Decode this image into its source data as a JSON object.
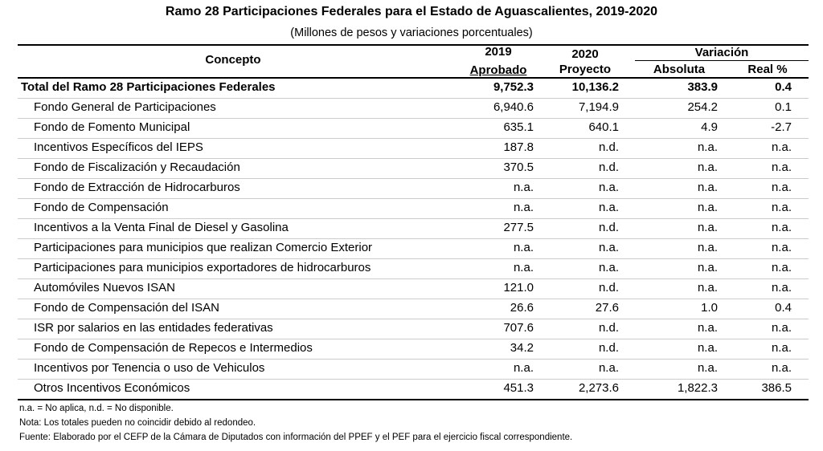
{
  "title": "Ramo 28 Participaciones Federales para el Estado de Aguascalientes, 2019-2020",
  "subtitle": "(Millones de pesos y variaciones porcentuales)",
  "headers": {
    "concepto": "Concepto",
    "y2019": "2019",
    "aprobado": "Aprobado",
    "y2020": "2020",
    "proyecto": "Proyecto",
    "variacion": "Variación",
    "absoluta": "Absoluta",
    "real": "Real %"
  },
  "rows": [
    {
      "concepto": "Total del Ramo 28 Participaciones Federales",
      "aprobado": "9,752.3",
      "proyecto": "10,136.2",
      "absoluta": "383.9",
      "real": "0.4"
    },
    {
      "concepto": "Fondo General de Participaciones",
      "aprobado": "6,940.6",
      "proyecto": "7,194.9",
      "absoluta": "254.2",
      "real": "0.1"
    },
    {
      "concepto": "Fondo de Fomento Municipal",
      "aprobado": "635.1",
      "proyecto": "640.1",
      "absoluta": "4.9",
      "real": "-2.7"
    },
    {
      "concepto": "Incentivos Específicos del IEPS",
      "aprobado": "187.8",
      "proyecto": "n.d.",
      "absoluta": "n.a.",
      "real": "n.a."
    },
    {
      "concepto": "Fondo de Fiscalización y Recaudación",
      "aprobado": "370.5",
      "proyecto": "n.d.",
      "absoluta": "n.a.",
      "real": "n.a."
    },
    {
      "concepto": "Fondo de Extracción de Hidrocarburos",
      "aprobado": "n.a.",
      "proyecto": "n.a.",
      "absoluta": "n.a.",
      "real": "n.a."
    },
    {
      "concepto": "Fondo de Compensación",
      "aprobado": "n.a.",
      "proyecto": "n.a.",
      "absoluta": "n.a.",
      "real": "n.a."
    },
    {
      "concepto": "Incentivos a la Venta Final de Diesel y Gasolina",
      "aprobado": "277.5",
      "proyecto": "n.d.",
      "absoluta": "n.a.",
      "real": "n.a."
    },
    {
      "concepto": "Participaciones para municipios que realizan Comercio Exterior",
      "aprobado": "n.a.",
      "proyecto": "n.a.",
      "absoluta": "n.a.",
      "real": "n.a."
    },
    {
      "concepto": "Participaciones para municipios exportadores de hidrocarburos",
      "aprobado": "n.a.",
      "proyecto": "n.a.",
      "absoluta": "n.a.",
      "real": "n.a."
    },
    {
      "concepto": "Automóviles Nuevos ISAN",
      "aprobado": "121.0",
      "proyecto": "n.d.",
      "absoluta": "n.a.",
      "real": "n.a."
    },
    {
      "concepto": "Fondo de Compensación del ISAN",
      "aprobado": "26.6",
      "proyecto": "27.6",
      "absoluta": "1.0",
      "real": "0.4"
    },
    {
      "concepto": "ISR por salarios en las entidades federativas",
      "aprobado": "707.6",
      "proyecto": "n.d.",
      "absoluta": "n.a.",
      "real": "n.a."
    },
    {
      "concepto": "Fondo de Compensación de Repecos e Intermedios",
      "aprobado": "34.2",
      "proyecto": "n.d.",
      "absoluta": "n.a.",
      "real": "n.a."
    },
    {
      "concepto": "Incentivos por Tenencia o uso de Vehiculos",
      "aprobado": "n.a.",
      "proyecto": "n.a.",
      "absoluta": "n.a.",
      "real": "n.a."
    },
    {
      "concepto": "Otros Incentivos Económicos",
      "aprobado": "451.3",
      "proyecto": "2,273.6",
      "absoluta": "1,822.3",
      "real": "386.5"
    }
  ],
  "notes": [
    "n.a. = No aplica, n.d. = No disponible.",
    "Nota: Los totales pueden no coincidir debido al redondeo.",
    "Fuente: Elaborado por el CEFP de la Cámara de Diputados con información del PPEF y el PEF para el ejercicio fiscal correspondiente."
  ]
}
